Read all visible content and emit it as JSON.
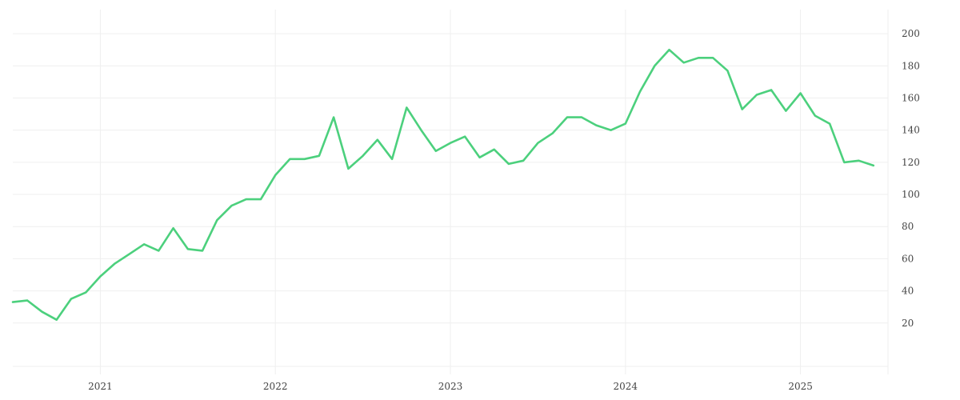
{
  "chart_data": {
    "type": "line",
    "title": "",
    "xlabel": "",
    "ylabel": "",
    "x_tick_labels": [
      "2021",
      "2022",
      "2023",
      "2024",
      "2025"
    ],
    "y_tick_labels": [
      "20",
      "40",
      "60",
      "80",
      "100",
      "120",
      "140",
      "160",
      "180",
      "200"
    ],
    "ylim": [
      -7,
      215
    ],
    "xlim": [
      "2020-07",
      "2025-07"
    ],
    "grid": true,
    "legend": "none",
    "y_axis_side": "right",
    "line_color": "#4cd07d",
    "grid_color": "#efefef",
    "series": [
      {
        "x": [
          "2020-07",
          "2020-08",
          "2020-09",
          "2020-10",
          "2020-11",
          "2020-12",
          "2021-01",
          "2021-02",
          "2021-03",
          "2021-04",
          "2021-05",
          "2021-06",
          "2021-07",
          "2021-08",
          "2021-09",
          "2021-10",
          "2021-11",
          "2021-12",
          "2022-01",
          "2022-02",
          "2022-03",
          "2022-04",
          "2022-05",
          "2022-06",
          "2022-07",
          "2022-08",
          "2022-09",
          "2022-10",
          "2022-11",
          "2022-12",
          "2023-01",
          "2023-02",
          "2023-03",
          "2023-04",
          "2023-05",
          "2023-06",
          "2023-07",
          "2023-08",
          "2023-09",
          "2023-10",
          "2023-11",
          "2023-12",
          "2024-01",
          "2024-02",
          "2024-03",
          "2024-04",
          "2024-05",
          "2024-06",
          "2024-07",
          "2024-08",
          "2024-09",
          "2024-10",
          "2024-11",
          "2024-12",
          "2025-01",
          "2025-02",
          "2025-03",
          "2025-04",
          "2025-05",
          "2025-06"
        ],
        "values": [
          33,
          34,
          27,
          22,
          35,
          39,
          49,
          57,
          63,
          69,
          65,
          79,
          66,
          65,
          84,
          93,
          97,
          97,
          112,
          122,
          122,
          124,
          148,
          116,
          124,
          134,
          122,
          154,
          140,
          127,
          132,
          136,
          123,
          128,
          119,
          121,
          132,
          138,
          148,
          148,
          143,
          140,
          144,
          164,
          180,
          190,
          182,
          185,
          185,
          177,
          153,
          162,
          165,
          152,
          163,
          149,
          144,
          120,
          121,
          118
        ]
      }
    ]
  }
}
